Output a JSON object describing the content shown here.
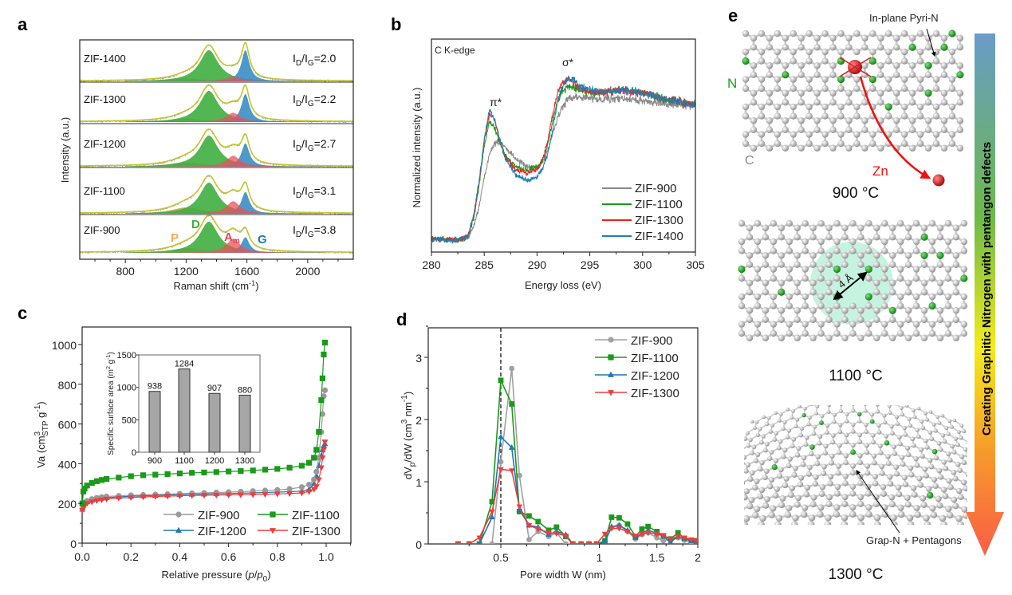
{
  "panel_labels": {
    "a": "a",
    "b": "b",
    "c": "c",
    "d": "d",
    "e": "e"
  },
  "chart_data": [
    {
      "id": "a",
      "type": "area",
      "xlabel": {
        "main": "Raman shift (cm",
        "sup": "-1",
        "end": ")"
      },
      "ylabel": "Intensity (a.u.)",
      "xlim": [
        500,
        2300
      ],
      "xticks": [
        800,
        1200,
        1600,
        2000
      ],
      "ratio_label": {
        "I": "I",
        "D": "D",
        "G": "G",
        "slash": "/",
        "eq": "="
      },
      "band_centers": {
        "P": 1200,
        "D": 1350,
        "Am": 1510,
        "G": 1590
      },
      "band_colors": {
        "P": "#c9a44c",
        "D": "#3fae3f",
        "Am": "#e8535a",
        "G": "#3a8fc4"
      },
      "band_labels": {
        "P": "P",
        "D": "D",
        "A": "A",
        "m": "m",
        "G": "G"
      },
      "band_label_colors": {
        "P": "#f5a95a",
        "D": "#3fae3f",
        "Am": "#f0444c",
        "G": "#1f77b4"
      },
      "samples": [
        {
          "name": "ZIF-1400",
          "ratio": "2.0",
          "bands": {
            "P": 0.1,
            "D": 1.0,
            "Am": 0.15,
            "G": 1.0
          }
        },
        {
          "name": "ZIF-1300",
          "ratio": "2.2",
          "bands": {
            "P": 0.12,
            "D": 1.0,
            "Am": 0.3,
            "G": 0.9
          }
        },
        {
          "name": "ZIF-1200",
          "ratio": "2.7",
          "bands": {
            "P": 0.15,
            "D": 1.0,
            "Am": 0.35,
            "G": 0.75
          }
        },
        {
          "name": "ZIF-1100",
          "ratio": "3.1",
          "bands": {
            "P": 0.2,
            "D": 1.0,
            "Am": 0.4,
            "G": 0.7
          }
        },
        {
          "name": "ZIF-900",
          "ratio": "3.8",
          "bands": {
            "P": 0.15,
            "D": 1.0,
            "Am": 0.45,
            "G": 0.5
          }
        }
      ]
    },
    {
      "id": "b",
      "type": "line",
      "annotation": "C K-edge",
      "peak_labels": {
        "pi": "π*",
        "sigma": "σ*"
      },
      "xlabel": "Energy loss (eV)",
      "ylabel": "Normalized intensity (a.u.)",
      "xlim": [
        280,
        305
      ],
      "ylim": [
        0,
        1
      ],
      "xticks": [
        280,
        285,
        290,
        295,
        300,
        305
      ],
      "legend": "right",
      "x": [
        280,
        281,
        282,
        283,
        283.5,
        284,
        284.5,
        285,
        285.5,
        286,
        286.5,
        287,
        288,
        289,
        290,
        290.5,
        291,
        291.5,
        292,
        292.5,
        293,
        293.5,
        294,
        295,
        296,
        298,
        300,
        302,
        305
      ],
      "series": [
        {
          "name": "ZIF-900",
          "color": "#888888",
          "values": [
            0.06,
            0.06,
            0.055,
            0.06,
            0.07,
            0.12,
            0.21,
            0.35,
            0.46,
            0.51,
            0.52,
            0.49,
            0.44,
            0.4,
            0.4,
            0.42,
            0.47,
            0.56,
            0.64,
            0.69,
            0.72,
            0.73,
            0.73,
            0.72,
            0.72,
            0.72,
            0.71,
            0.7,
            0.68
          ]
        },
        {
          "name": "ZIF-1100",
          "color": "#1a9a1a",
          "values": [
            0.06,
            0.06,
            0.055,
            0.06,
            0.08,
            0.16,
            0.31,
            0.5,
            0.61,
            0.58,
            0.51,
            0.45,
            0.4,
            0.385,
            0.4,
            0.43,
            0.5,
            0.62,
            0.72,
            0.76,
            0.78,
            0.77,
            0.76,
            0.75,
            0.75,
            0.76,
            0.75,
            0.72,
            0.69
          ]
        },
        {
          "name": "ZIF-1300",
          "color": "#f01e1e",
          "values": [
            0.06,
            0.06,
            0.055,
            0.06,
            0.08,
            0.17,
            0.32,
            0.52,
            0.65,
            0.62,
            0.52,
            0.45,
            0.385,
            0.37,
            0.39,
            0.43,
            0.52,
            0.65,
            0.76,
            0.8,
            0.81,
            0.8,
            0.77,
            0.75,
            0.75,
            0.76,
            0.75,
            0.72,
            0.69
          ]
        },
        {
          "name": "ZIF-1400",
          "color": "#1f7fb0",
          "values": [
            0.06,
            0.06,
            0.055,
            0.06,
            0.08,
            0.17,
            0.33,
            0.53,
            0.67,
            0.62,
            0.52,
            0.44,
            0.36,
            0.335,
            0.35,
            0.39,
            0.46,
            0.58,
            0.72,
            0.79,
            0.82,
            0.81,
            0.78,
            0.76,
            0.75,
            0.76,
            0.75,
            0.72,
            0.69
          ]
        }
      ]
    },
    {
      "id": "c",
      "type": "scatter",
      "xlabel": {
        "main": "Relative pressure (",
        "p": "p",
        "slash": "/",
        "p0": "p",
        "sub": "0",
        "end": ")"
      },
      "ylabel": {
        "main": "Va (cm",
        "sup": "3",
        "sub": "STP",
        "mid": " g",
        "sup2": "-1",
        "end": ")"
      },
      "xlim": [
        0,
        1.1
      ],
      "ylim": [
        0,
        1090
      ],
      "xticks": [
        "0.0",
        "0.2",
        "0.4",
        "0.6",
        "0.8",
        "1.0"
      ],
      "yticks": [
        0,
        200,
        400,
        600,
        800,
        1000
      ],
      "legend": "bottom-right",
      "x": [
        0.001,
        0.005,
        0.01,
        0.02,
        0.04,
        0.06,
        0.08,
        0.1,
        0.15,
        0.2,
        0.25,
        0.3,
        0.35,
        0.4,
        0.45,
        0.5,
        0.55,
        0.6,
        0.65,
        0.7,
        0.75,
        0.8,
        0.85,
        0.9,
        0.93,
        0.95,
        0.96,
        0.97,
        0.98,
        0.985,
        0.99,
        0.995
      ],
      "series": [
        {
          "name": "ZIF-900",
          "color": "#999999",
          "marker": "circle",
          "values": [
            170,
            195,
            205,
            213,
            222,
            228,
            232,
            235,
            238,
            241,
            243,
            245,
            247,
            249,
            251,
            253,
            255,
            257,
            259,
            262,
            265,
            268,
            273,
            282,
            295,
            320,
            360,
            430,
            560,
            650,
            740,
            770
          ]
        },
        {
          "name": "ZIF-1100",
          "color": "#1a9a1a",
          "marker": "square",
          "values": [
            200,
            260,
            275,
            290,
            303,
            312,
            318,
            323,
            330,
            337,
            342,
            345,
            348,
            351,
            354,
            356,
            358,
            361,
            363,
            366,
            370,
            374,
            380,
            390,
            405,
            430,
            470,
            560,
            720,
            830,
            950,
            1010
          ]
        },
        {
          "name": "ZIF-1200",
          "color": "#1f77b4",
          "marker": "triangle-up",
          "values": [
            170,
            190,
            200,
            208,
            216,
            222,
            226,
            229,
            233,
            236,
            238,
            240,
            242,
            244,
            246,
            247,
            249,
            250,
            252,
            253,
            255,
            257,
            259,
            262,
            270,
            300,
            340,
            390,
            440,
            470,
            490,
            500
          ]
        },
        {
          "name": "ZIF-1300",
          "color": "#f03c3c",
          "marker": "triangle-down",
          "values": [
            165,
            180,
            190,
            200,
            208,
            214,
            218,
            222,
            227,
            230,
            233,
            235,
            237,
            238,
            240,
            241,
            242,
            243,
            244,
            245,
            246,
            248,
            250,
            253,
            260,
            272,
            285,
            320,
            380,
            430,
            470,
            510
          ]
        }
      ],
      "inset": {
        "type": "bar",
        "ylabel": {
          "main": "Specific surface area (m",
          "sup": "2",
          "mid": " g",
          "sup2": "-1",
          "end": ")"
        },
        "categories": [
          "900",
          "1100",
          "1200",
          "1300"
        ],
        "values": [
          938,
          1284,
          907,
          880
        ],
        "value_labels": [
          "938",
          "1284",
          "907",
          "880"
        ],
        "ylim": [
          0,
          1500
        ],
        "yticks": [
          0,
          500,
          1000,
          1500
        ],
        "color": "#a6a6a6"
      }
    },
    {
      "id": "d",
      "type": "line",
      "xscale": "log",
      "xlabel": "Pore width W (nm)",
      "ylabel": {
        "main": "dV",
        "sub": "p",
        "mid": "/dW (cm",
        "sup": "3",
        "mid2": " nm",
        "sup2": "-1",
        "end": ")"
      },
      "xlim": [
        0.3,
        2
      ],
      "ylim": [
        0,
        3.5
      ],
      "xticks": [
        "0.5",
        "1",
        "1.5",
        "2"
      ],
      "yticks": [
        0,
        1,
        2,
        3
      ],
      "reference_line_x": 0.5,
      "legend": "top-right",
      "x": [
        0.37,
        0.4,
        0.43,
        0.47,
        0.5,
        0.54,
        0.57,
        0.61,
        0.65,
        0.7,
        0.74,
        0.79,
        0.83,
        0.88,
        0.93,
        0.98,
        1.04,
        1.09,
        1.15,
        1.22,
        1.29,
        1.35,
        1.41,
        1.5,
        1.57,
        1.65,
        1.74,
        1.82,
        1.91,
        1.98
      ],
      "series": [
        {
          "name": "ZIF-900",
          "color": "#a0a0a0",
          "marker": "circle",
          "values": [
            0,
            0,
            0,
            0,
            1.32,
            2.82,
            1.1,
            0.07,
            0.2,
            0.12,
            0.18,
            0,
            0,
            0,
            0,
            0,
            0.04,
            0.26,
            0.3,
            0.2,
            0.08,
            0.15,
            0.18,
            0.1,
            0.05,
            0.08,
            0.1,
            0.06,
            0.03,
            0
          ]
        },
        {
          "name": "ZIF-1100",
          "color": "#1a9a1a",
          "marker": "square",
          "values": [
            0,
            0,
            0,
            0.68,
            2.63,
            2.25,
            0.52,
            0.45,
            0.36,
            0.22,
            0.27,
            0.12,
            0,
            0,
            0,
            0,
            0.05,
            0.43,
            0.42,
            0.32,
            0.12,
            0.24,
            0.28,
            0.2,
            0.13,
            0.08,
            0.18,
            0.09,
            0.06,
            0.05
          ]
        },
        {
          "name": "ZIF-1200",
          "color": "#1f77b4",
          "marker": "triangle-up",
          "values": [
            0,
            0,
            0,
            0.43,
            1.72,
            1.55,
            0.55,
            0.3,
            0.27,
            0.15,
            0.2,
            0.15,
            0,
            0,
            0,
            0,
            0.03,
            0.28,
            0.3,
            0.22,
            0.1,
            0.17,
            0.22,
            0.17,
            0.12,
            0.03,
            0.12,
            0.09,
            0.05,
            0.02
          ]
        },
        {
          "name": "ZIF-1300",
          "color": "#f03c3c",
          "marker": "triangle-down",
          "values": [
            0,
            0,
            0.1,
            0.52,
            1.2,
            1.18,
            0.6,
            0.3,
            0.24,
            0.18,
            0.17,
            0.13,
            0,
            0,
            0,
            0,
            0.16,
            0.25,
            0.25,
            0.2,
            0.13,
            0.16,
            0.18,
            0.16,
            0.14,
            0.08,
            0.12,
            0.1,
            0.07,
            0.06
          ]
        }
      ]
    }
  ],
  "illustration": {
    "pyri_n": "In-plane Pyri-N",
    "n_label": "N",
    "c_label": "C",
    "zn_label": "Zn",
    "temp_900": "900 °C",
    "distance": "4 Å",
    "temp_1100": "1100 °C",
    "grap_n": "Grap-N + Pentagons",
    "temp_1300": "1300 °C",
    "arrow_text": "Creating Graphitic Nitrogen with pentangon defects",
    "colors": {
      "carbon": "#c8c8c8",
      "nitrogen": "#1fa01f",
      "zinc": "#e01010",
      "glow": "#b8f0d8"
    },
    "gradient": [
      "#6a9bc9",
      "#6cb94a",
      "#f2ec1a",
      "#f79a2a",
      "#fa5d47"
    ]
  }
}
